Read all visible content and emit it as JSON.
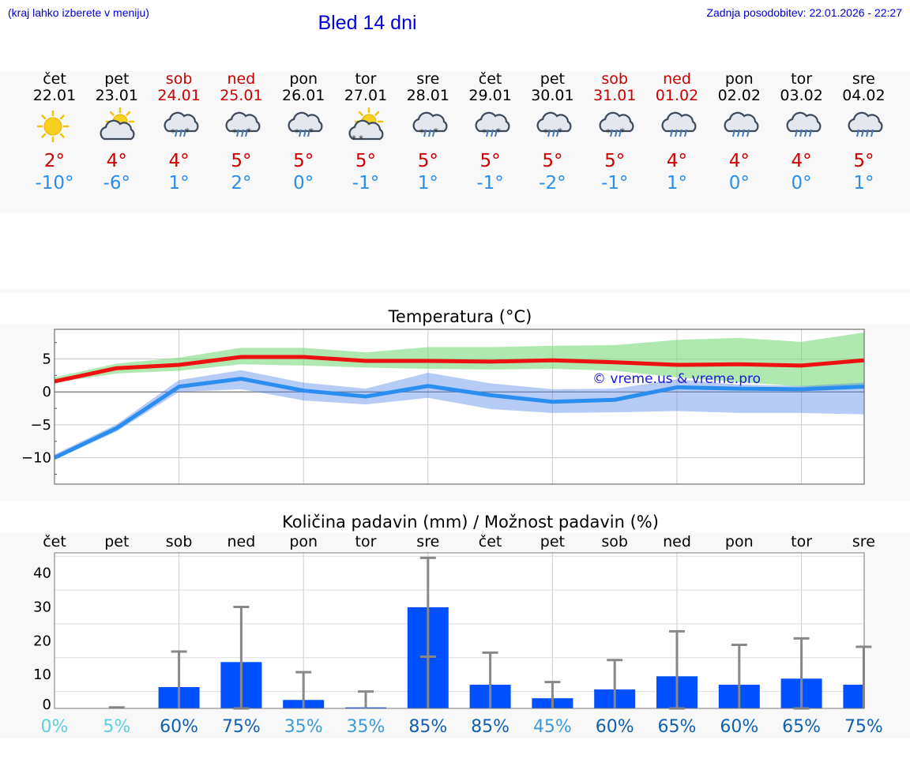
{
  "header": {
    "hint": "(kraj lahko izberete v meniju)",
    "title": "Bled 14 dni",
    "updated": "Zadnja posodobitev: 22.01.2026 - 22:27"
  },
  "colors": {
    "weekday": "#000000",
    "weekend": "#cc0000",
    "tmax": "#cc0000",
    "tmin": "#2a8ee8",
    "bar": "#0050ff"
  },
  "forecast": [
    {
      "day": "čet",
      "date": "22.01",
      "weekend": false,
      "icon": "sun-icon",
      "max": "2°",
      "min": "-10°"
    },
    {
      "day": "pet",
      "date": "23.01",
      "weekend": false,
      "icon": "partly-cloudy-icon",
      "max": "4°",
      "min": "-6°"
    },
    {
      "day": "sob",
      "date": "24.01",
      "weekend": true,
      "icon": "sleet-icon",
      "max": "4°",
      "min": "1°"
    },
    {
      "day": "ned",
      "date": "25.01",
      "weekend": true,
      "icon": "sleet-icon",
      "max": "5°",
      "min": "2°"
    },
    {
      "day": "pon",
      "date": "26.01",
      "weekend": false,
      "icon": "sleet-icon",
      "max": "5°",
      "min": "0°"
    },
    {
      "day": "tor",
      "date": "27.01",
      "weekend": false,
      "icon": "sun-snow-icon",
      "max": "5°",
      "min": "-1°"
    },
    {
      "day": "sre",
      "date": "28.01",
      "weekend": false,
      "icon": "sleet-icon",
      "max": "5°",
      "min": "1°"
    },
    {
      "day": "čet",
      "date": "29.01",
      "weekend": false,
      "icon": "sleet-icon",
      "max": "5°",
      "min": "-1°"
    },
    {
      "day": "pet",
      "date": "30.01",
      "weekend": false,
      "icon": "sleet-icon",
      "max": "5°",
      "min": "-2°"
    },
    {
      "day": "sob",
      "date": "31.01",
      "weekend": true,
      "icon": "sleet-icon",
      "max": "5°",
      "min": "-1°"
    },
    {
      "day": "ned",
      "date": "01.02",
      "weekend": true,
      "icon": "rain-icon",
      "max": "4°",
      "min": "1°"
    },
    {
      "day": "pon",
      "date": "02.02",
      "weekend": false,
      "icon": "rain-icon",
      "max": "4°",
      "min": "0°"
    },
    {
      "day": "tor",
      "date": "03.02",
      "weekend": false,
      "icon": "rain-icon",
      "max": "4°",
      "min": "0°"
    },
    {
      "day": "sre",
      "date": "04.02",
      "weekend": false,
      "icon": "rain-icon",
      "max": "5°",
      "min": "1°"
    }
  ],
  "chart_data": [
    {
      "type": "line",
      "title": "Temperatura (°C)",
      "ylim": [
        -14,
        9.5
      ],
      "yticks": [
        5,
        0,
        -5,
        -10
      ],
      "ytick_labels": [
        "5",
        "0",
        "−5",
        "−10"
      ],
      "watermark": "© vreme.us & vreme.pro",
      "series": [
        {
          "name": "max",
          "values": [
            1.6,
            3.6,
            4.1,
            5.3,
            5.3,
            4.7,
            4.7,
            4.6,
            4.8,
            4.5,
            4.1,
            4.2,
            4.0,
            4.8
          ],
          "band_low": [
            1.4,
            2.8,
            3.2,
            4.2,
            4.0,
            3.7,
            3.5,
            3.4,
            3.5,
            3.2,
            2.2,
            1.5,
            0.8,
            0.5
          ],
          "band_high": [
            2.2,
            4.3,
            5.2,
            6.7,
            6.7,
            6.0,
            6.8,
            6.8,
            7.0,
            7.1,
            7.9,
            8.2,
            7.6,
            9.0
          ]
        },
        {
          "name": "min",
          "values": [
            -10.0,
            -5.5,
            0.8,
            2.0,
            0.2,
            -0.7,
            0.9,
            -0.5,
            -1.5,
            -1.2,
            0.7,
            0.5,
            0.4,
            0.8
          ],
          "band_low": [
            -10.3,
            -6.0,
            0.0,
            0.4,
            -1.3,
            -1.9,
            -0.9,
            -2.6,
            -3.2,
            -3.1,
            -2.9,
            -3.2,
            -3.2,
            -3.4
          ],
          "band_high": [
            -9.5,
            -4.9,
            1.8,
            3.3,
            1.4,
            0.5,
            2.9,
            1.3,
            0.4,
            0.5,
            1.9,
            1.1,
            0.9,
            1.4
          ]
        }
      ]
    },
    {
      "type": "bar",
      "title": "Količina padavin (mm) / Možnost padavin (%)",
      "categories": [
        "čet",
        "pet",
        "sob",
        "ned",
        "pon",
        "tor",
        "sre",
        "čet",
        "pet",
        "sob",
        "ned",
        "pon",
        "tor",
        "sre"
      ],
      "ylim": [
        0,
        46
      ],
      "yticks": [
        40,
        30,
        20,
        10,
        0
      ],
      "values": [
        0,
        0,
        6.3,
        13.7,
        2.5,
        0.3,
        29.9,
        7.0,
        3.0,
        5.6,
        9.5,
        7.0,
        8.8,
        7.0
      ],
      "error_high": [
        0,
        0.3,
        16.8,
        30.0,
        10.7,
        5.0,
        44.5,
        16.5,
        7.8,
        14.3,
        22.8,
        18.8,
        20.7,
        18.2
      ],
      "probability": [
        "0%",
        "5%",
        "60%",
        "75%",
        "35%",
        "35%",
        "85%",
        "85%",
        "45%",
        "60%",
        "65%",
        "60%",
        "65%",
        "75%"
      ]
    }
  ]
}
